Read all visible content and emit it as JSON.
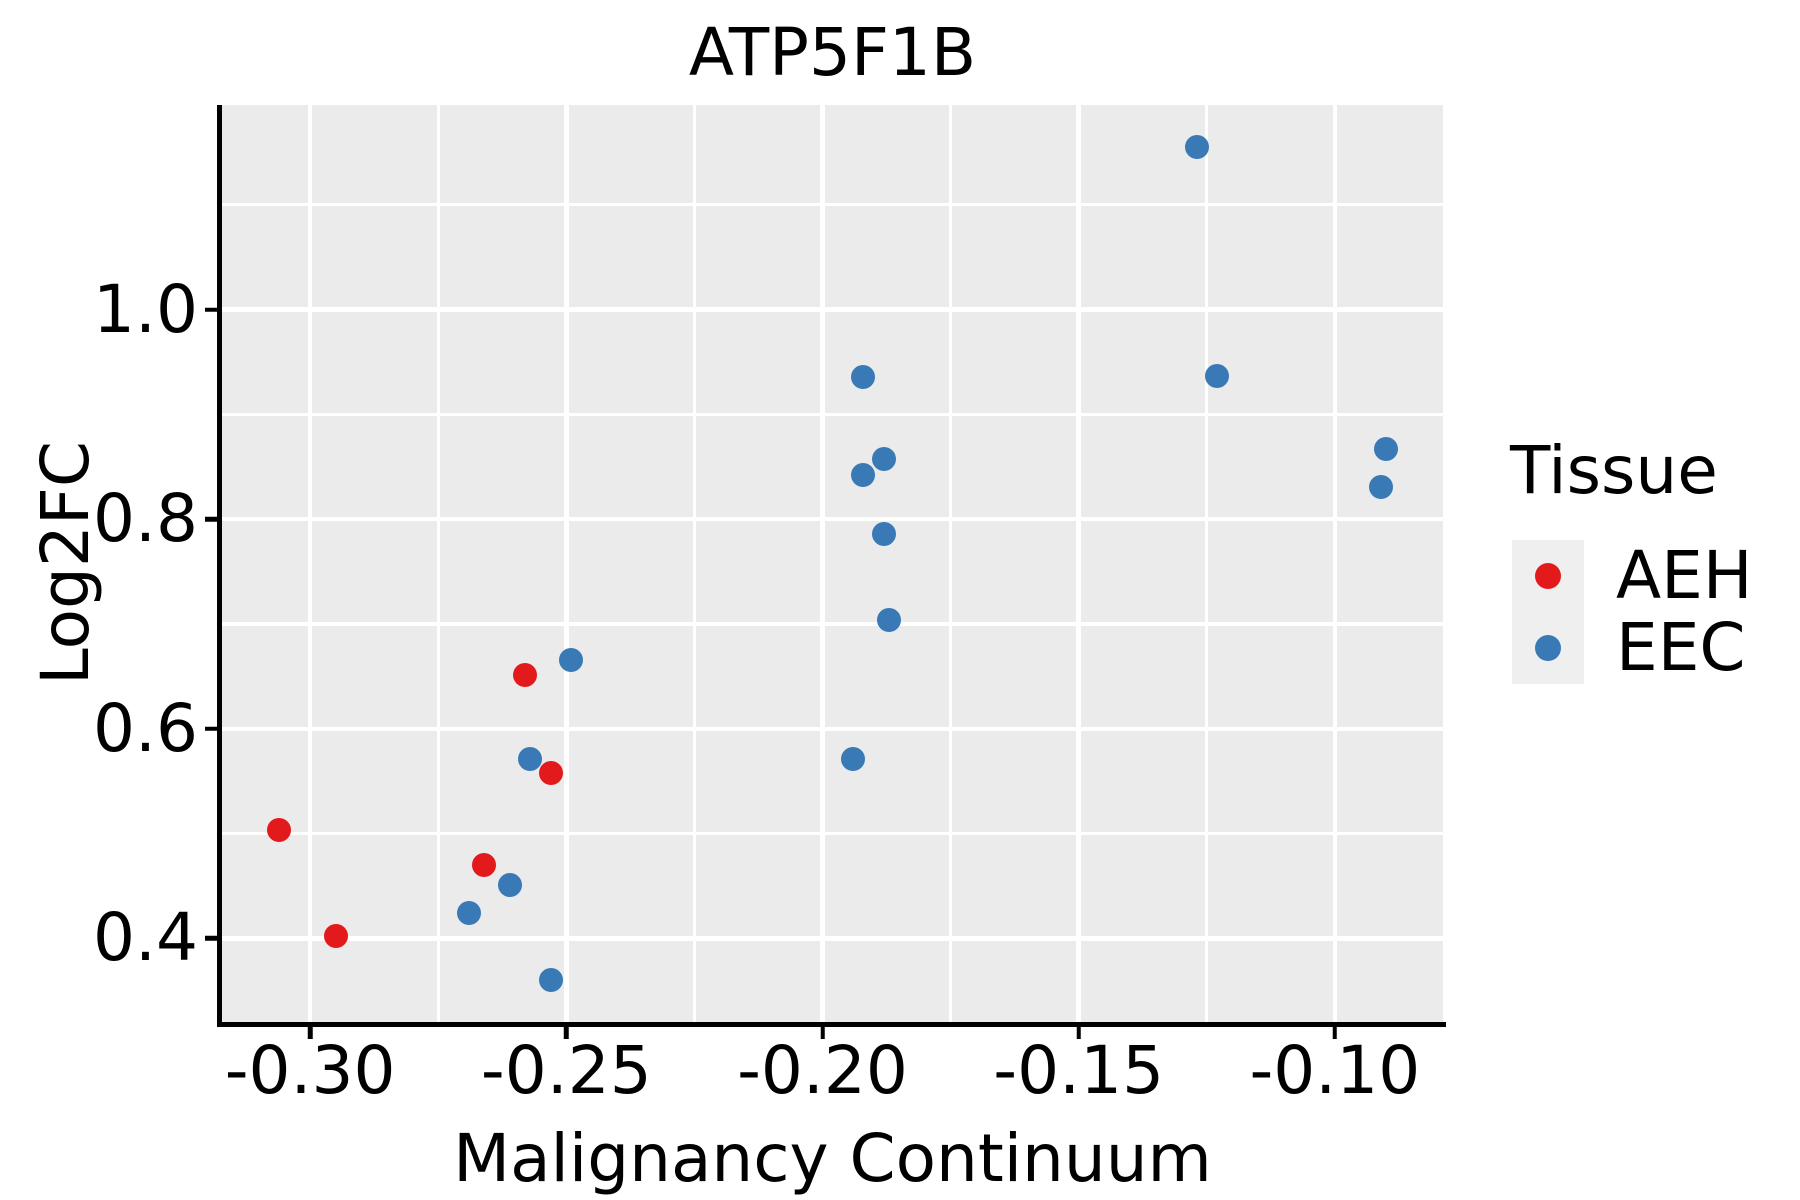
{
  "title": "ATP5F1B",
  "colors": {
    "aeh": "#E31A1C",
    "eec": "#3979B5",
    "panel_bg": "#EBEBEB",
    "grid": "#FFFFFF",
    "legend_key_bg": "#EFEFEF",
    "axis_line": "#000000",
    "text": "#000000"
  },
  "x_axis": {
    "label": "Malignancy Continuum",
    "tick_labels": [
      "-0.30",
      "-0.25",
      "-0.20",
      "-0.15",
      "-0.10"
    ],
    "tick_values": [
      -0.3,
      -0.25,
      -0.2,
      -0.15,
      -0.1
    ],
    "minor_values": [
      -0.275,
      -0.225,
      -0.175,
      -0.125
    ],
    "range": [
      -0.3172,
      -0.0789
    ]
  },
  "y_axis": {
    "label": "Log2FC",
    "tick_labels": [
      "0.4",
      "0.6",
      "0.8",
      "1.0"
    ],
    "tick_values": [
      0.4,
      0.6,
      0.8,
      1.0
    ],
    "minor_values": [
      0.5,
      0.7,
      0.9,
      1.1
    ],
    "range": [
      0.3202,
      1.1952
    ]
  },
  "legend": {
    "title": "Tissue",
    "items": [
      {
        "label": "AEH",
        "color": "#E31A1C"
      },
      {
        "label": "EEC",
        "color": "#3979B5"
      }
    ]
  },
  "chart_data": {
    "type": "scatter",
    "title": "ATP5F1B",
    "xlabel": "Malignancy Continuum",
    "ylabel": "Log2FC",
    "xlim": [
      -0.3172,
      -0.0789
    ],
    "ylim": [
      0.3202,
      1.1952
    ],
    "grid": true,
    "legend_title": "Tissue",
    "legend_position": "right",
    "series": [
      {
        "name": "AEH",
        "color": "#E31A1C",
        "points": [
          [
            -0.306,
            0.503
          ],
          [
            -0.295,
            0.402
          ],
          [
            -0.266,
            0.47
          ],
          [
            -0.258,
            0.651
          ],
          [
            -0.253,
            0.558
          ]
        ]
      },
      {
        "name": "EEC",
        "color": "#3979B5",
        "points": [
          [
            -0.269,
            0.424
          ],
          [
            -0.261,
            0.451
          ],
          [
            -0.257,
            0.571
          ],
          [
            -0.253,
            0.36
          ],
          [
            -0.249,
            0.666
          ],
          [
            -0.194,
            0.571
          ],
          [
            -0.192,
            0.936
          ],
          [
            -0.192,
            0.842
          ],
          [
            -0.188,
            0.857
          ],
          [
            -0.188,
            0.786
          ],
          [
            -0.187,
            0.704
          ],
          [
            -0.127,
            1.155
          ],
          [
            -0.123,
            0.937
          ],
          [
            -0.09,
            0.867
          ],
          [
            -0.091,
            0.831
          ]
        ]
      }
    ]
  }
}
